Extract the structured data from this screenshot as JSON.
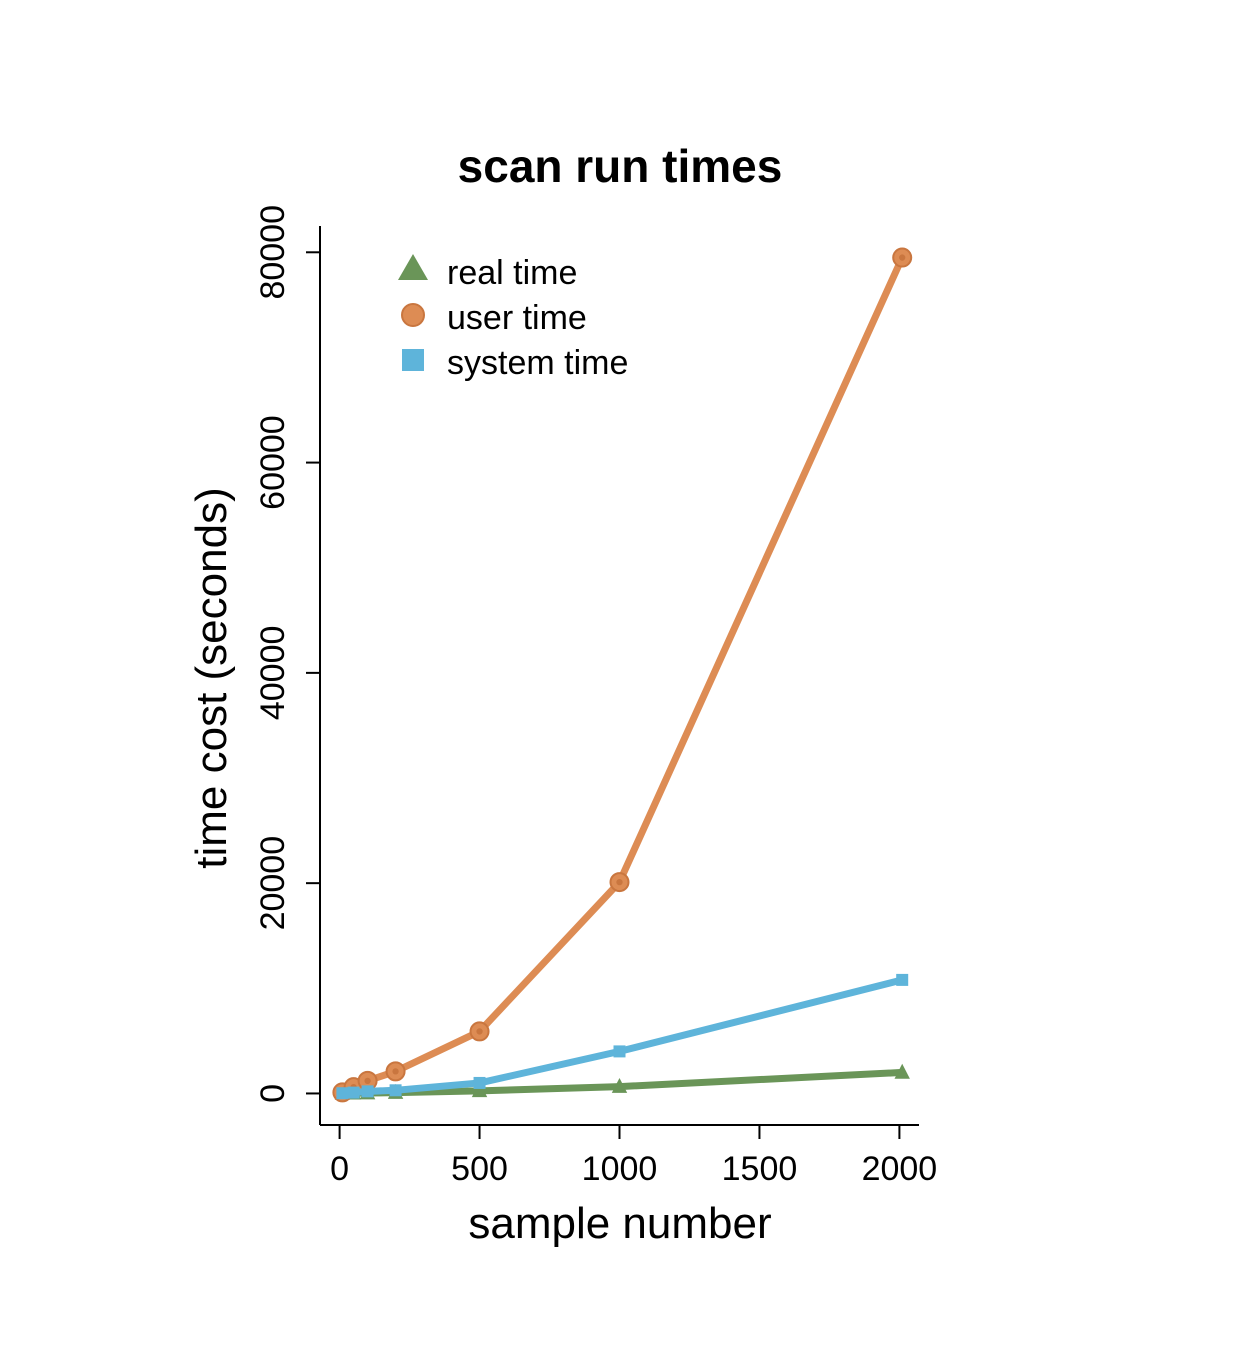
{
  "chart_data": {
    "type": "line",
    "title": "scan run times",
    "xlabel": "sample number",
    "ylabel": "time cost (seconds)",
    "xlim": [
      -70,
      2070
    ],
    "ylim": [
      -3000,
      82500
    ],
    "x_ticks": [
      0,
      500,
      1000,
      1500,
      2000
    ],
    "y_ticks": [
      0,
      20000,
      40000,
      60000,
      80000
    ],
    "x": [
      10,
      50,
      100,
      200,
      500,
      1000,
      2010
    ],
    "legend_position": "top-left",
    "grid": false,
    "series": [
      {
        "name": "real time",
        "marker": "triangle",
        "color": "#6a9558",
        "values": [
          5,
          20,
          40,
          80,
          250,
          650,
          2000
        ]
      },
      {
        "name": "user time",
        "marker": "circle",
        "color": "#dd8c54",
        "values": [
          100,
          600,
          1200,
          2100,
          5900,
          20100,
          79500
        ]
      },
      {
        "name": "system time",
        "marker": "square",
        "color": "#5eb4da",
        "values": [
          20,
          80,
          200,
          300,
          1000,
          4000,
          10800
        ]
      }
    ]
  }
}
